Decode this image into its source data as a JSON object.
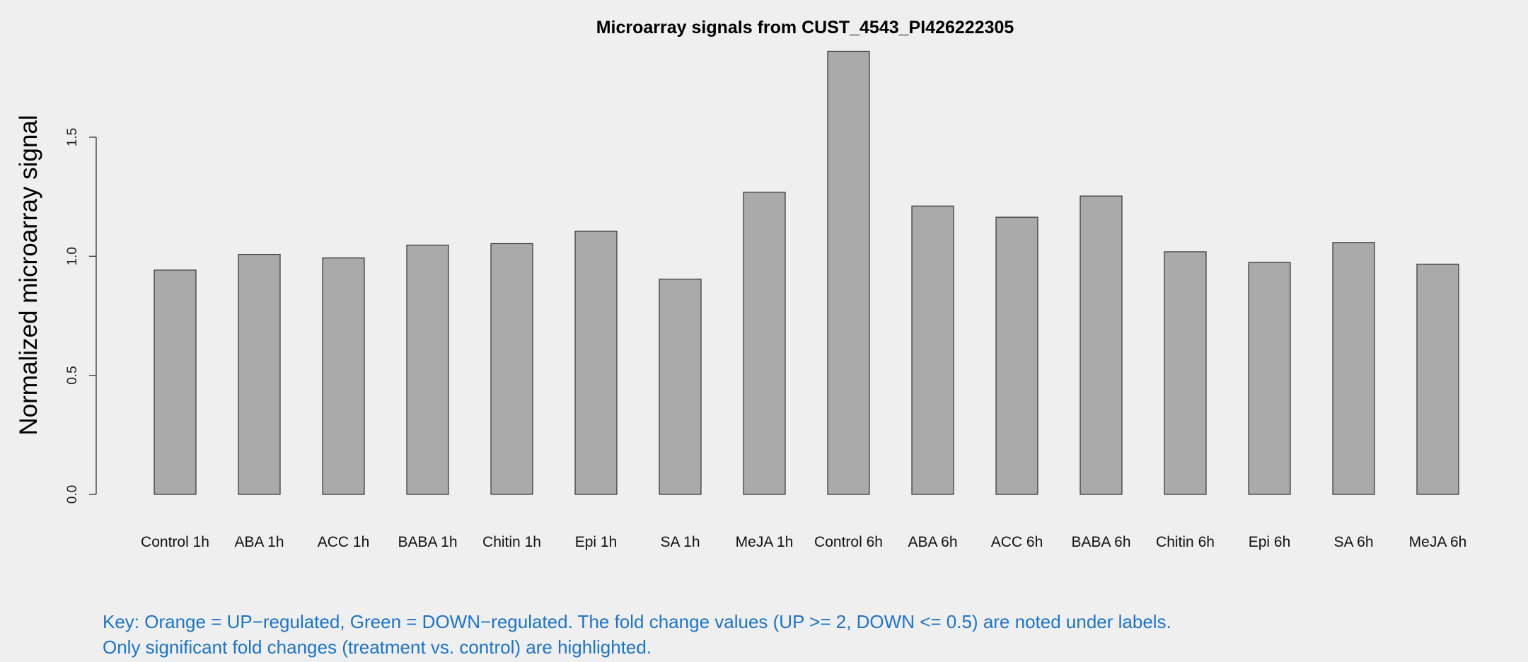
{
  "chart_data": {
    "type": "bar",
    "title": "Microarray signals from CUST_4543_PI426222305",
    "xlabel": "",
    "ylabel": "Normalized microarray signal",
    "ylim": [
      0,
      1.9
    ],
    "yticks": [
      0,
      0.5,
      1,
      1.5
    ],
    "ytick_labels": [
      "0.0",
      "0.5",
      "1.0",
      "1.5"
    ],
    "grid": false,
    "categories": [
      "Control 1h",
      "ABA 1h",
      "ACC 1h",
      "BABA 1h",
      "Chitin 1h",
      "Epi 1h",
      "SA 1h",
      "MeJA 1h",
      "Control 6h",
      "ABA 6h",
      "ACC 6h",
      "BABA 6h",
      "Chitin 6h",
      "Epi 6h",
      "SA 6h",
      "MeJA 6h"
    ],
    "values": [
      0.942,
      1.008,
      0.993,
      1.047,
      1.053,
      1.105,
      0.904,
      1.269,
      1.861,
      1.211,
      1.164,
      1.253,
      1.019,
      0.974,
      1.058,
      0.967
    ],
    "bar_color": "#aaaaaa",
    "background": "#efefef"
  },
  "key": {
    "line1": "Key: Orange = UP−regulated, Green = DOWN−regulated. The fold change values (UP >= 2, DOWN <= 0.5) are noted under labels.",
    "line2": "Only significant fold changes (treatment vs. control) are highlighted.",
    "color": "#1c74c9"
  }
}
